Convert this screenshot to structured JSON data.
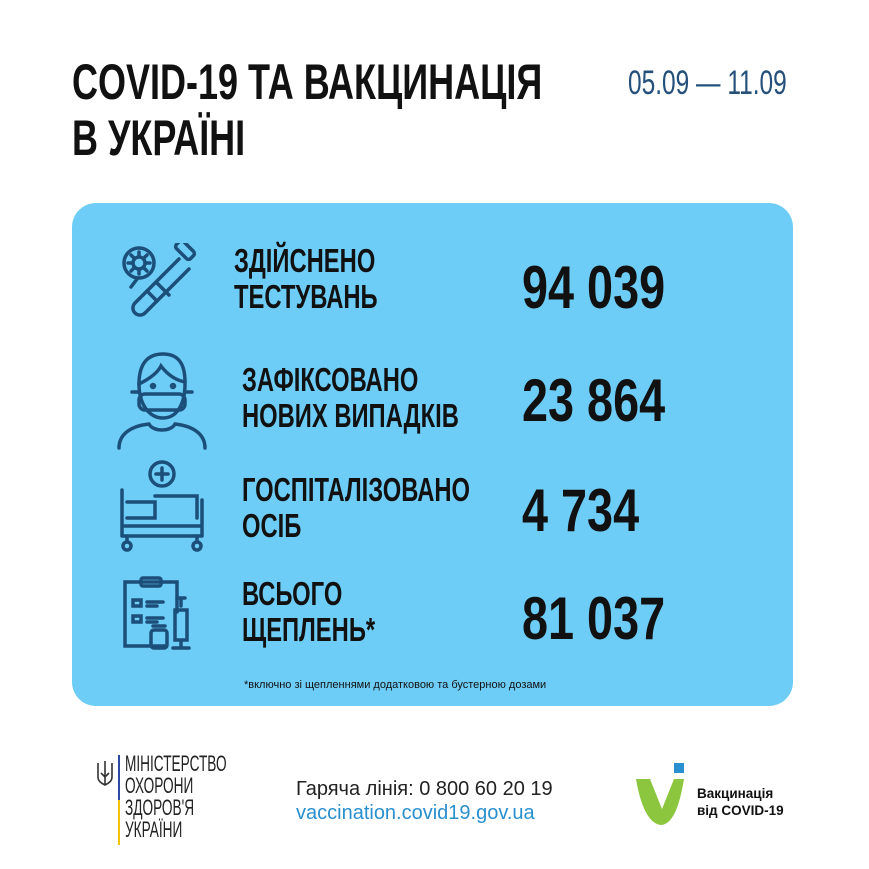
{
  "header": {
    "title_line1": "COVID-19 ТА ВАКЦИНАЦІЯ",
    "title_line2": "В УКРАЇНІ",
    "date_range": "05.09 — 11.09"
  },
  "stats": [
    {
      "icon": "test-tube-virus-icon",
      "label_line1": "ЗДІЙСНЕНО",
      "label_line2": "ТЕСТУВАНЬ",
      "value": "94 039"
    },
    {
      "icon": "masked-person-icon",
      "label_line1": "ЗАФІКСОВАНО",
      "label_line2": "НОВИХ ВИПАДКІВ",
      "value": "23 864"
    },
    {
      "icon": "hospital-bed-icon",
      "label_line1": "ГОСПІТАЛІЗОВАНО",
      "label_line2": "ОСІБ",
      "value": "4 734"
    },
    {
      "icon": "clipboard-syringe-icon",
      "label_line1": "ВСЬОГО",
      "label_line2": "ЩЕПЛЕНЬ*",
      "value": "81 037"
    }
  ],
  "footnote": "*включно зі щепленнями додатковою та бустерною дозами",
  "footer": {
    "ministry": [
      "МІНІСТЕРСТВО",
      "ОХОРОНИ",
      "ЗДОРОВ'Я",
      "УКРАЇНИ"
    ],
    "hotline": "Гаряча лінія: 0 800 60 20 19",
    "website": "vaccination.covid19.gov.ua",
    "vaccination_logo_line1": "Вакцинація",
    "vaccination_logo_line2": "від COVID-19"
  },
  "colors": {
    "card": "#6ecdf6",
    "icon": "#1b4f7a",
    "date": "#24507a",
    "link": "#2a8fcf",
    "logo_green": "#8cc63f",
    "logo_blue": "#2a8fcf"
  }
}
